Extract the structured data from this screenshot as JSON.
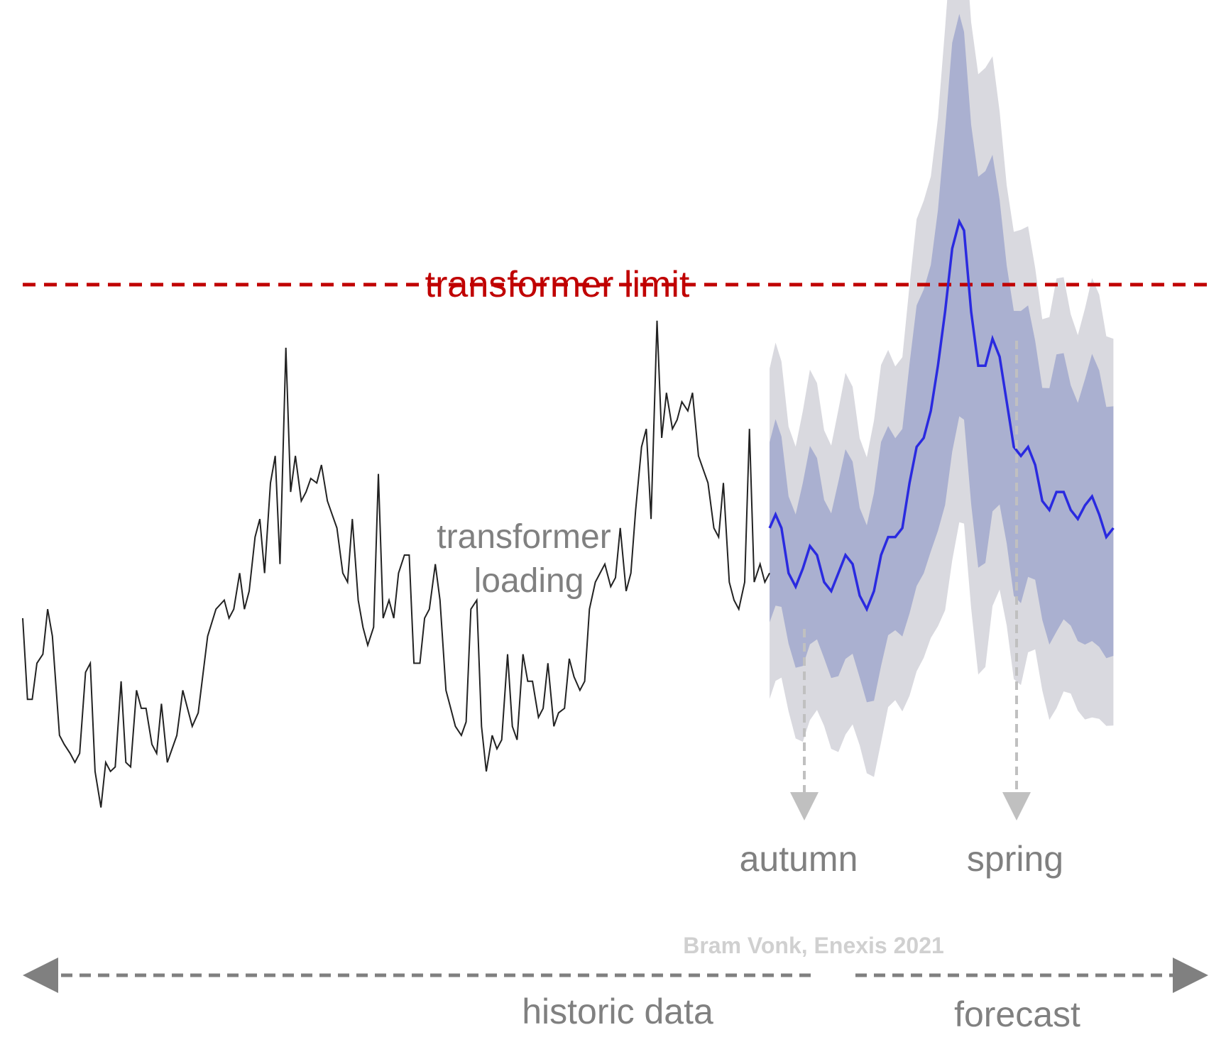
{
  "labels": {
    "limit": "transformer limit",
    "loading_line1": "transformer",
    "loading_line2": "loading",
    "autumn": "autumn",
    "spring": "spring",
    "credit": "Bram Vonk, Enexis 2021",
    "historic": "historic data",
    "forecast": "forecast"
  },
  "colors": {
    "limit": "#c00000",
    "historic_line": "#222222",
    "forecast_line": "#2a2ae0",
    "band_outer": "#d9d9df",
    "band_inner": "#aab0d0",
    "label_gray": "#808080",
    "marker_gray": "#c0c0c0",
    "credit": "#d0d0d0",
    "arrow_gray": "#808080"
  },
  "chart_data": {
    "type": "line",
    "title": "",
    "xlabel": "",
    "ylabel": "",
    "x_range": [
      0,
      100
    ],
    "y_range": [
      0,
      100
    ],
    "transformer_limit": 70,
    "forecast_start_x": 66,
    "spring_x": 84,
    "historic_series": [
      [
        0,
        33
      ],
      [
        0.4,
        24
      ],
      [
        0.8,
        24
      ],
      [
        1.2,
        28
      ],
      [
        1.7,
        29
      ],
      [
        2.1,
        34
      ],
      [
        2.5,
        31
      ],
      [
        3.1,
        20
      ],
      [
        3.5,
        19
      ],
      [
        4.0,
        18
      ],
      [
        4.4,
        17
      ],
      [
        4.8,
        18
      ],
      [
        5.3,
        27
      ],
      [
        5.7,
        28
      ],
      [
        6.1,
        16
      ],
      [
        6.6,
        12
      ],
      [
        7.0,
        17
      ],
      [
        7.4,
        16
      ],
      [
        7.8,
        16.5
      ],
      [
        8.3,
        26
      ],
      [
        8.7,
        17
      ],
      [
        9.1,
        16.5
      ],
      [
        9.6,
        25
      ],
      [
        10.0,
        23
      ],
      [
        10.4,
        23
      ],
      [
        10.9,
        19
      ],
      [
        11.3,
        18
      ],
      [
        11.7,
        23.5
      ],
      [
        12.2,
        17
      ],
      [
        12.6,
        18.5
      ],
      [
        13.0,
        20
      ],
      [
        13.5,
        25
      ],
      [
        13.9,
        23
      ],
      [
        14.3,
        21
      ],
      [
        14.8,
        22.5
      ],
      [
        15.6,
        31
      ],
      [
        16.3,
        34
      ],
      [
        17.0,
        35
      ],
      [
        17.4,
        33
      ],
      [
        17.8,
        34
      ],
      [
        18.3,
        38
      ],
      [
        18.7,
        34
      ],
      [
        19.1,
        36
      ],
      [
        19.6,
        42
      ],
      [
        20.0,
        44
      ],
      [
        20.4,
        38
      ],
      [
        20.9,
        48
      ],
      [
        21.3,
        51
      ],
      [
        21.7,
        39
      ],
      [
        22.2,
        63
      ],
      [
        22.6,
        47
      ],
      [
        23.0,
        51
      ],
      [
        23.5,
        46
      ],
      [
        23.9,
        47
      ],
      [
        24.3,
        48.5
      ],
      [
        24.8,
        48
      ],
      [
        25.2,
        50
      ],
      [
        25.7,
        46
      ],
      [
        26.1,
        44.5
      ],
      [
        26.5,
        43
      ],
      [
        27.0,
        38
      ],
      [
        27.4,
        37
      ],
      [
        27.8,
        44
      ],
      [
        28.3,
        35
      ],
      [
        28.7,
        32
      ],
      [
        29.1,
        30
      ],
      [
        29.6,
        32
      ],
      [
        30.0,
        49
      ],
      [
        30.4,
        33
      ],
      [
        30.9,
        35
      ],
      [
        31.3,
        33
      ],
      [
        31.7,
        38
      ],
      [
        32.2,
        40
      ],
      [
        32.6,
        40
      ],
      [
        33.0,
        28
      ],
      [
        33.5,
        28
      ],
      [
        33.9,
        33
      ],
      [
        34.3,
        34
      ],
      [
        34.8,
        39
      ],
      [
        35.2,
        35
      ],
      [
        35.7,
        25
      ],
      [
        36.1,
        23
      ],
      [
        36.5,
        21
      ],
      [
        37.0,
        20
      ],
      [
        37.4,
        21.5
      ],
      [
        37.8,
        34
      ],
      [
        38.3,
        35
      ],
      [
        38.7,
        21
      ],
      [
        39.1,
        16
      ],
      [
        39.6,
        20
      ],
      [
        40.0,
        18.5
      ],
      [
        40.4,
        19.5
      ],
      [
        40.9,
        29
      ],
      [
        41.3,
        21
      ],
      [
        41.7,
        19.5
      ],
      [
        42.2,
        29
      ],
      [
        42.6,
        26
      ],
      [
        43.0,
        26
      ],
      [
        43.5,
        22
      ],
      [
        43.9,
        23
      ],
      [
        44.3,
        28
      ],
      [
        44.8,
        21
      ],
      [
        45.2,
        22.5
      ],
      [
        45.7,
        23
      ],
      [
        46.1,
        28.5
      ],
      [
        46.5,
        26.5
      ],
      [
        47.0,
        25
      ],
      [
        47.4,
        26
      ],
      [
        47.8,
        34
      ],
      [
        48.3,
        37
      ],
      [
        48.7,
        38
      ],
      [
        49.1,
        39
      ],
      [
        49.6,
        36.5
      ],
      [
        50.0,
        37.5
      ],
      [
        50.4,
        43
      ],
      [
        50.9,
        36
      ],
      [
        51.3,
        38
      ],
      [
        51.7,
        45
      ],
      [
        52.2,
        52
      ],
      [
        52.6,
        54
      ],
      [
        53.0,
        44
      ],
      [
        53.5,
        66
      ],
      [
        53.9,
        53
      ],
      [
        54.3,
        58
      ],
      [
        54.8,
        54
      ],
      [
        55.2,
        55
      ],
      [
        55.6,
        57
      ],
      [
        56.1,
        56
      ],
      [
        56.5,
        58
      ],
      [
        57.0,
        51
      ],
      [
        57.4,
        49.5
      ],
      [
        57.8,
        48
      ],
      [
        58.3,
        43
      ],
      [
        58.7,
        42
      ],
      [
        59.1,
        48
      ],
      [
        59.6,
        37
      ],
      [
        60.0,
        35
      ],
      [
        60.4,
        34
      ],
      [
        60.9,
        37
      ],
      [
        61.3,
        54
      ],
      [
        61.7,
        37
      ],
      [
        62.2,
        39
      ],
      [
        62.6,
        37
      ],
      [
        63.0,
        38
      ]
    ],
    "forecast_series": [
      [
        63.0,
        43
      ],
      [
        63.5,
        44.5
      ],
      [
        64.0,
        43
      ],
      [
        64.6,
        38
      ],
      [
        65.2,
        36.5
      ],
      [
        65.8,
        38.5
      ],
      [
        66.4,
        41
      ],
      [
        67.0,
        40
      ],
      [
        67.6,
        37
      ],
      [
        68.2,
        36
      ],
      [
        68.8,
        38
      ],
      [
        69.4,
        40
      ],
      [
        70.0,
        39
      ],
      [
        70.6,
        35.5
      ],
      [
        71.2,
        34
      ],
      [
        71.8,
        36
      ],
      [
        72.4,
        40
      ],
      [
        73.0,
        42
      ],
      [
        73.6,
        42
      ],
      [
        74.2,
        43
      ],
      [
        74.8,
        48
      ],
      [
        75.4,
        52
      ],
      [
        76.0,
        53
      ],
      [
        76.6,
        56
      ],
      [
        77.2,
        61
      ],
      [
        77.8,
        67
      ],
      [
        78.4,
        74
      ],
      [
        79.0,
        77
      ],
      [
        79.4,
        76
      ],
      [
        80.0,
        67
      ],
      [
        80.6,
        61
      ],
      [
        81.2,
        61
      ],
      [
        81.8,
        64
      ],
      [
        82.4,
        62
      ],
      [
        83.0,
        57
      ],
      [
        83.6,
        52
      ],
      [
        84.2,
        51
      ],
      [
        84.8,
        52
      ],
      [
        85.4,
        50
      ],
      [
        86.0,
        46
      ],
      [
        86.6,
        45
      ],
      [
        87.2,
        47
      ],
      [
        87.8,
        47
      ],
      [
        88.4,
        45
      ],
      [
        89.0,
        44
      ],
      [
        89.6,
        45.5
      ],
      [
        90.2,
        46.5
      ],
      [
        90.8,
        44.5
      ],
      [
        91.4,
        42
      ],
      [
        92.0,
        43
      ]
    ]
  }
}
